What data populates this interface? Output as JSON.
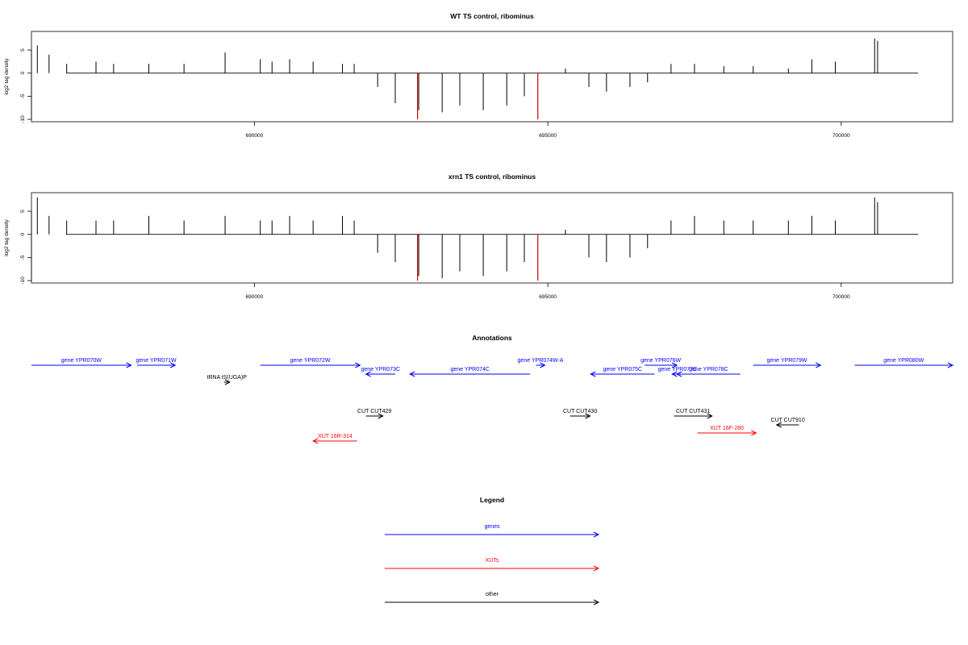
{
  "chart_data": [
    {
      "type": "bar",
      "title": "WT TS control, ribominus",
      "ylabel": "log2 tag density",
      "xlim": [
        686200,
        701900
      ],
      "ylim": [
        -10,
        8.5
      ],
      "x_ticks": [
        "690000",
        "695000",
        "700000"
      ],
      "y_ticks": [
        "5",
        "0",
        "-5",
        "-10"
      ],
      "red_marks": [
        692780,
        694830
      ],
      "series": [
        {
          "x": [
            686300,
            686500,
            686800,
            687300,
            687600,
            688200,
            688800,
            689500,
            690100,
            690300,
            690600,
            691000,
            691500,
            691700,
            692100,
            692400,
            692800,
            693200,
            693500,
            693900,
            694300,
            694600,
            695300,
            695700,
            696000,
            696400,
            696700,
            697100,
            697500,
            698000,
            698500,
            699100,
            699500,
            699900,
            700570,
            700620
          ],
          "values": [
            6,
            4,
            2,
            2.5,
            2,
            2,
            2,
            4.5,
            3,
            2.5,
            3,
            2.5,
            2,
            2,
            -3,
            -6.5,
            -8,
            -8.5,
            -7,
            -8,
            -7,
            -5,
            1,
            -3,
            -4,
            -3,
            -2,
            2,
            2,
            1.5,
            1.5,
            1,
            3,
            2.5,
            7.5,
            7
          ]
        }
      ]
    },
    {
      "type": "bar",
      "title": "xrn1 TS control, ribominus",
      "ylabel": "log2 tag density",
      "xlim": [
        686200,
        701900
      ],
      "ylim": [
        -10,
        8.5
      ],
      "x_ticks": [
        "690000",
        "695000",
        "700000"
      ],
      "y_ticks": [
        "5",
        "0",
        "-5",
        "-10"
      ],
      "red_marks": [
        692780,
        694830
      ],
      "series": [
        {
          "x": [
            686300,
            686500,
            686800,
            687300,
            687600,
            688200,
            688800,
            689500,
            690100,
            690300,
            690600,
            691000,
            691500,
            691700,
            692100,
            692400,
            692800,
            693200,
            693500,
            693900,
            694300,
            694600,
            695300,
            695700,
            696000,
            696400,
            696700,
            697100,
            697500,
            698000,
            698500,
            699100,
            699500,
            699900,
            700570,
            700620
          ],
          "values": [
            8,
            4,
            3,
            3,
            3,
            4,
            3,
            4,
            3,
            3,
            4,
            3,
            4,
            3,
            -4,
            -6,
            -9,
            -9.5,
            -8,
            -9,
            -8,
            -6,
            1,
            -5,
            -6,
            -5,
            -3,
            3,
            4,
            3,
            3,
            3,
            4,
            3,
            8,
            7
          ]
        }
      ]
    }
  ],
  "annotations": {
    "title": "Annotations",
    "features": [
      {
        "label": "gene YPR070W",
        "start": 686200,
        "end": 687900,
        "dir": "+",
        "row": 0,
        "color": "#0000ff"
      },
      {
        "label": "gene YPR071W",
        "start": 688000,
        "end": 688650,
        "dir": "+",
        "row": 0,
        "color": "#0000ff"
      },
      {
        "label": "tRNA tS(UGA)P",
        "start": 689480,
        "end": 689580,
        "dir": "+",
        "row": 2,
        "color": "#000000"
      },
      {
        "label": "gene YPR072W",
        "start": 690100,
        "end": 691800,
        "dir": "+",
        "row": 0,
        "color": "#0000ff"
      },
      {
        "label": "gene YPR073C",
        "start": 691900,
        "end": 692400,
        "dir": "-",
        "row": 1,
        "color": "#0000ff"
      },
      {
        "label": "gene YPR074C",
        "start": 692650,
        "end": 694700,
        "dir": "-",
        "row": 1,
        "color": "#0000ff"
      },
      {
        "label": "gene YPR074W-A",
        "start": 694800,
        "end": 694950,
        "dir": "+",
        "row": 0,
        "color": "#0000ff"
      },
      {
        "label": "gene YPR075C",
        "start": 695730,
        "end": 696820,
        "dir": "-",
        "row": 1,
        "color": "#0000ff"
      },
      {
        "label": "gene YPR076W",
        "start": 696650,
        "end": 697200,
        "dir": "+",
        "row": 0,
        "color": "#0000ff"
      },
      {
        "label": "gene YPR077C",
        "start": 697120,
        "end": 697300,
        "dir": "-",
        "row": 1,
        "color": "#0000ff"
      },
      {
        "label": "gene YPR078C",
        "start": 697200,
        "end": 698280,
        "dir": "-",
        "row": 1,
        "color": "#0000ff"
      },
      {
        "label": "gene YPR079W",
        "start": 698500,
        "end": 699650,
        "dir": "+",
        "row": 0,
        "color": "#0000ff"
      },
      {
        "label": "gene YPR080W",
        "start": 700230,
        "end": 701900,
        "dir": "+",
        "row": 0,
        "color": "#0000ff"
      },
      {
        "label": "CUT CUT429",
        "start": 691900,
        "end": 692190,
        "dir": "+",
        "row": 3,
        "color": "#000000"
      },
      {
        "label": "CUT CUT430",
        "start": 695380,
        "end": 695720,
        "dir": "+",
        "row": 3,
        "color": "#000000"
      },
      {
        "label": "CUT CUT431",
        "start": 697150,
        "end": 697800,
        "dir": "+",
        "row": 3,
        "color": "#000000"
      },
      {
        "label": "CUT CUT910",
        "start": 698900,
        "end": 699280,
        "dir": "-",
        "row": 4,
        "color": "#000000"
      },
      {
        "label": "XUT 16F-280",
        "start": 697550,
        "end": 698550,
        "dir": "+",
        "row": 5,
        "color": "#ff0000"
      },
      {
        "label": "XUT 16R-314",
        "start": 691000,
        "end": 691750,
        "dir": "-",
        "row": 6,
        "color": "#ff0000"
      }
    ]
  },
  "legend": {
    "title": "Legend",
    "entries": [
      {
        "label": "genes",
        "color": "#0000ff"
      },
      {
        "label": "XUTs",
        "color": "#ff0000"
      },
      {
        "label": "other",
        "color": "#000000"
      }
    ]
  }
}
